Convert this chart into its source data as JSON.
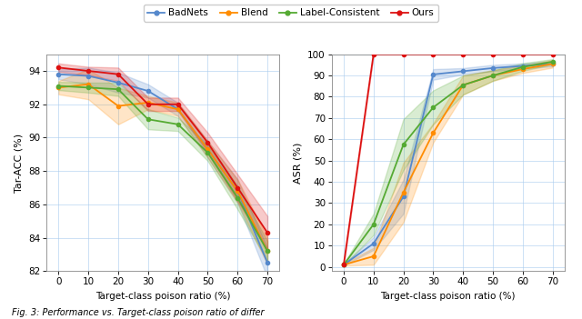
{
  "x": [
    0,
    10,
    20,
    30,
    40,
    50,
    60,
    70
  ],
  "tar_acc": {
    "BadNets": {
      "mean": [
        93.8,
        93.7,
        93.3,
        92.8,
        91.7,
        89.3,
        86.8,
        82.5
      ],
      "std": [
        0.3,
        0.5,
        0.6,
        0.4,
        0.4,
        0.5,
        0.7,
        0.9
      ]
    },
    "Blend": {
      "mean": [
        93.0,
        93.2,
        91.9,
        92.1,
        91.7,
        89.3,
        86.8,
        83.2
      ],
      "std": [
        0.4,
        0.9,
        1.1,
        0.4,
        0.4,
        0.5,
        0.7,
        0.8
      ]
    },
    "Label-Consistent": {
      "mean": [
        93.1,
        93.0,
        92.9,
        91.1,
        90.8,
        89.1,
        86.4,
        83.2
      ],
      "std": [
        0.25,
        0.3,
        0.4,
        0.6,
        0.4,
        0.5,
        0.7,
        0.6
      ]
    },
    "Ours": {
      "mean": [
        94.2,
        94.0,
        93.8,
        92.0,
        92.0,
        89.7,
        87.0,
        84.3
      ],
      "std": [
        0.25,
        0.25,
        0.4,
        0.4,
        0.4,
        0.6,
        0.8,
        1.0
      ]
    }
  },
  "asr": {
    "BadNets": {
      "mean": [
        1.0,
        11.0,
        33.0,
        90.5,
        92.0,
        93.5,
        94.5,
        95.5
      ],
      "std": [
        0.4,
        3.0,
        8.0,
        2.5,
        1.5,
        1.5,
        1.2,
        1.2
      ]
    },
    "Blend": {
      "mean": [
        1.0,
        5.0,
        35.0,
        63.0,
        85.5,
        90.0,
        93.0,
        95.5
      ],
      "std": [
        0.4,
        4.0,
        14.0,
        4.5,
        4.5,
        2.5,
        1.8,
        1.8
      ]
    },
    "Label-Consistent": {
      "mean": [
        1.0,
        20.0,
        57.5,
        75.0,
        85.5,
        90.0,
        94.0,
        96.5
      ],
      "std": [
        0.4,
        5.0,
        12.0,
        8.0,
        4.5,
        2.5,
        1.8,
        1.2
      ]
    },
    "Ours": {
      "mean": [
        1.0,
        100.0,
        100.0,
        100.0,
        100.0,
        100.0,
        100.0,
        100.0
      ],
      "std": [
        0.3,
        0.0,
        0.0,
        0.0,
        0.0,
        0.0,
        0.0,
        0.0
      ]
    }
  },
  "colors": {
    "BadNets": "#5588CC",
    "Blend": "#FF8C00",
    "Label-Consistent": "#55AA33",
    "Ours": "#DD1111"
  },
  "legend_labels": [
    "BadNets",
    "Blend",
    "Label-Consistent",
    "Ours"
  ],
  "tar_acc_ylim": [
    82,
    95
  ],
  "tar_acc_yticks": [
    82,
    84,
    86,
    88,
    90,
    92,
    94
  ],
  "asr_ylim": [
    -2,
    100
  ],
  "asr_yticks": [
    0,
    10,
    20,
    30,
    40,
    50,
    60,
    70,
    80,
    90,
    100
  ],
  "xticks": [
    0,
    10,
    20,
    30,
    40,
    50,
    60,
    70
  ],
  "xlabel": "Target-class poison ratio (%)",
  "ylabel_left": "Tar-ACC (%)",
  "ylabel_right": "ASR (%)",
  "figure_caption": "Fig. 3: Performance vs. Target-class poison ratio of differ",
  "grid_color": "#aaccee",
  "grid_alpha": 0.7,
  "grid_linewidth": 0.6
}
